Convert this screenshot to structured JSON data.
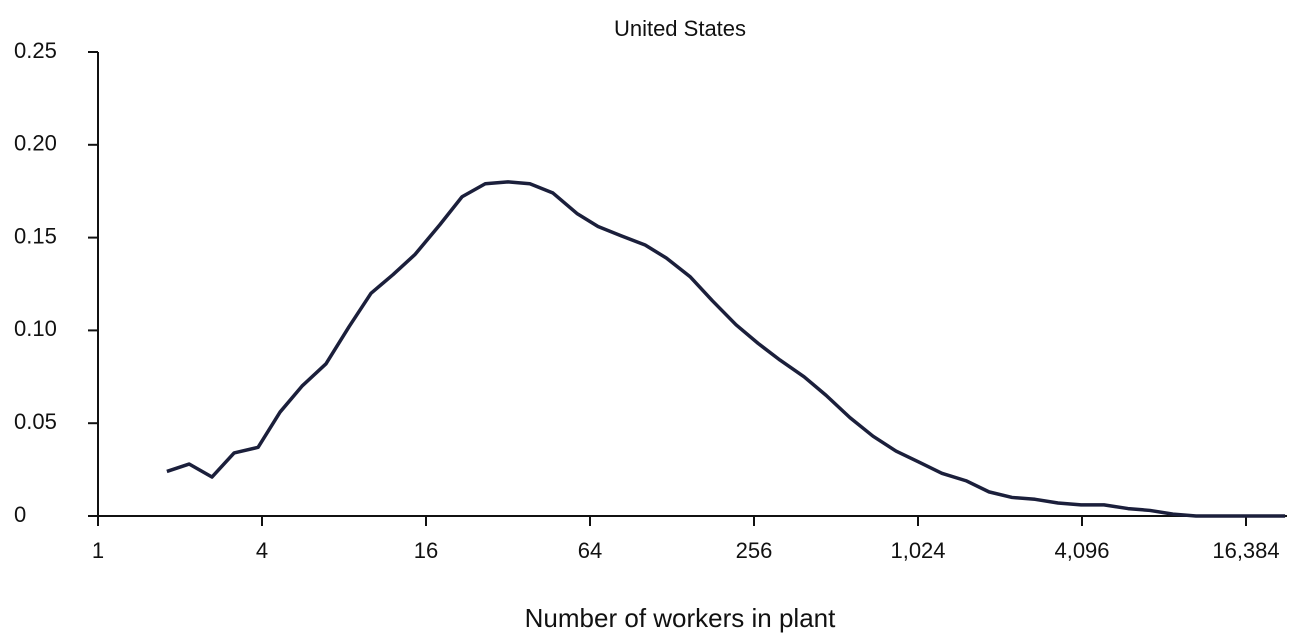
{
  "chart_data": {
    "type": "line",
    "title": "United States",
    "xlabel": "Number of workers in plant",
    "xscale": "log2",
    "color": "#1b1f3b",
    "x": [
      1.79,
      2.16,
      2.62,
      3.16,
      3.87,
      4.66,
      5.61,
      6.87,
      8.35,
      10.05,
      12.1,
      14.6,
      18.0,
      21.7,
      26.4,
      32,
      38.5,
      46.8,
      57.3,
      68.5,
      83.2,
      102,
      122,
      149,
      180,
      220,
      265,
      319,
      391,
      471,
      576,
      700,
      850,
      1034,
      1253,
      1536,
      1866,
      2267,
      2754,
      3344,
      4062,
      4933,
      6044,
      7277,
      8838,
      10740,
      13040,
      15970,
      22800
    ],
    "values": [
      0.024,
      0.028,
      0.021,
      0.034,
      0.037,
      0.056,
      0.07,
      0.082,
      0.102,
      0.12,
      0.13,
      0.141,
      0.157,
      0.172,
      0.179,
      0.18,
      0.179,
      0.174,
      0.163,
      0.156,
      0.151,
      0.146,
      0.139,
      0.129,
      0.116,
      0.103,
      0.093,
      0.084,
      0.075,
      0.065,
      0.053,
      0.043,
      0.035,
      0.029,
      0.023,
      0.019,
      0.013,
      0.01,
      0.009,
      0.007,
      0.006,
      0.006,
      0.004,
      0.003,
      0.001,
      0.0,
      0,
      0,
      0
    ],
    "xlim": [
      1,
      23170
    ],
    "ylim": [
      0,
      0.25
    ],
    "xticks": [
      1,
      4,
      16,
      64,
      256,
      {
        "value": 1024,
        "label": "1,024"
      },
      {
        "value": 4096,
        "label": "4,096"
      },
      {
        "value": 16384,
        "label": "16,384"
      }
    ],
    "yticks": [
      0,
      0.05,
      {
        "value": 0.1,
        "label": "0.10"
      },
      0.15,
      {
        "value": 0.2,
        "label": "0.20"
      },
      0.25
    ]
  }
}
